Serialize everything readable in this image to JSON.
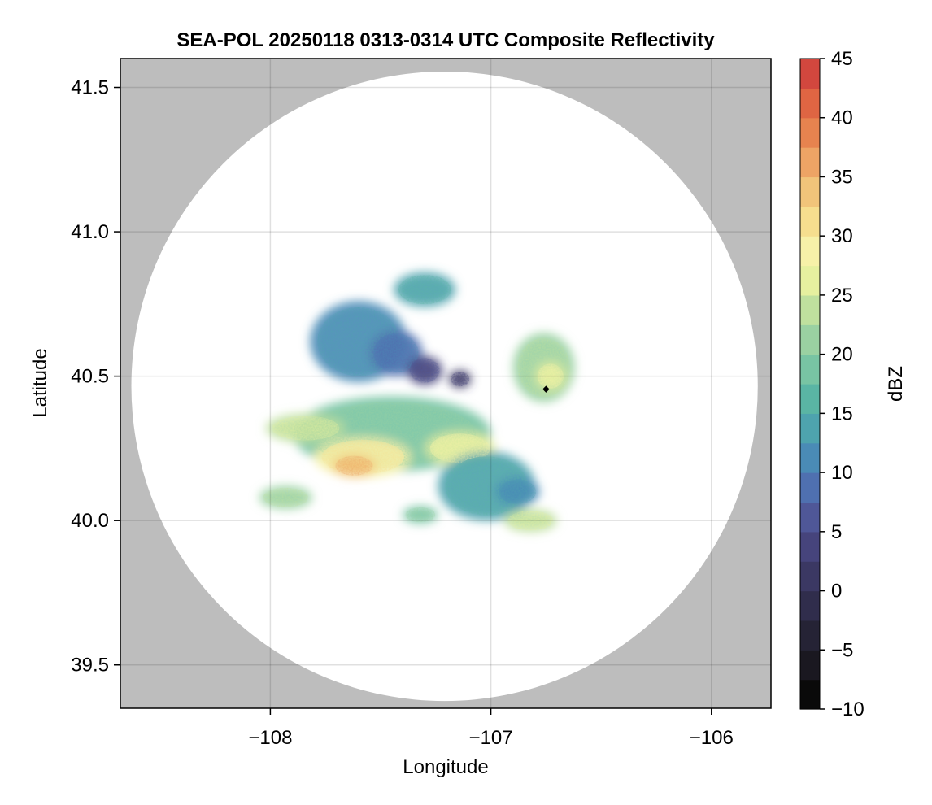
{
  "chart_data": {
    "type": "heatmap",
    "title": "SEA-POL 20250118 0313-0314 UTC Composite Reflectivity",
    "xlabel": "Longitude",
    "ylabel": "Latitude",
    "xlim": [
      -108.68,
      -105.73
    ],
    "ylim": [
      39.35,
      41.6
    ],
    "x_ticks": [
      -108,
      -107,
      -106
    ],
    "x_tick_labels": [
      "−108",
      "−107",
      "−106"
    ],
    "y_ticks": [
      39.5,
      40.0,
      40.5,
      41.0,
      41.5
    ],
    "y_tick_labels": [
      "39.5",
      "40.0",
      "40.5",
      "41.0",
      "41.5"
    ],
    "grid": true,
    "background_color": "#bdbdbd",
    "radar_coverage": {
      "center_lon": -107.21,
      "center_lat": 40.465,
      "radius_deg_lat": 1.09
    },
    "radar_site": {
      "lon": -106.75,
      "lat": 40.455
    },
    "colorbar": {
      "label": "dBZ",
      "min": -10,
      "max": 45,
      "step": 2.5,
      "ticks": [
        -10,
        -5,
        0,
        5,
        10,
        15,
        20,
        25,
        30,
        35,
        40,
        45
      ],
      "tick_labels": [
        "−10",
        "−5",
        "0",
        "5",
        "10",
        "15",
        "20",
        "25",
        "30",
        "35",
        "40",
        "45"
      ],
      "colors": [
        "#0a0a0a",
        "#1a1820",
        "#252335",
        "#302d4c",
        "#3b3863",
        "#46447c",
        "#4f5798",
        "#4f70b0",
        "#4a8bb6",
        "#4ea3ae",
        "#5ab5a4",
        "#78c4a3",
        "#9ad1a2",
        "#bfe09e",
        "#e6f09f",
        "#f7f1a8",
        "#f6de8e",
        "#f1c47a",
        "#eda465",
        "#e7834f",
        "#df6543",
        "#d2473e",
        "#b52e45",
        "#a81c50",
        "#bf2e7c",
        "#d9589d",
        "#e88ec0",
        "#d6a2cf",
        "#b788c2",
        "#9a62aa",
        "#7c3f8f",
        "#5f1f74",
        "#42085a"
      ]
    },
    "echo_regions": [
      {
        "lon": -107.45,
        "lat": 40.3,
        "dlon": 0.45,
        "dlat": 0.13,
        "dbz": 18
      },
      {
        "lon": -107.58,
        "lat": 40.22,
        "dlon": 0.22,
        "dlat": 0.07,
        "dbz": 28
      },
      {
        "lon": -107.62,
        "lat": 40.19,
        "dlon": 0.1,
        "dlat": 0.04,
        "dbz": 33
      },
      {
        "lon": -107.14,
        "lat": 40.25,
        "dlon": 0.16,
        "dlat": 0.06,
        "dbz": 26
      },
      {
        "lon": -107.84,
        "lat": 40.32,
        "dlon": 0.18,
        "dlat": 0.05,
        "dbz": 23
      },
      {
        "lon": -107.6,
        "lat": 40.62,
        "dlon": 0.22,
        "dlat": 0.14,
        "dbz": 12
      },
      {
        "lon": -107.43,
        "lat": 40.58,
        "dlon": 0.12,
        "dlat": 0.08,
        "dbz": 8
      },
      {
        "lon": -107.3,
        "lat": 40.52,
        "dlon": 0.08,
        "dlat": 0.05,
        "dbz": 3
      },
      {
        "lon": -107.14,
        "lat": 40.49,
        "dlon": 0.05,
        "dlat": 0.03,
        "dbz": 1
      },
      {
        "lon": -107.3,
        "lat": 40.8,
        "dlon": 0.14,
        "dlat": 0.06,
        "dbz": 13
      },
      {
        "lon": -107.02,
        "lat": 40.12,
        "dlon": 0.22,
        "dlat": 0.12,
        "dbz": 14
      },
      {
        "lon": -106.88,
        "lat": 40.1,
        "dlon": 0.1,
        "dlat": 0.05,
        "dbz": 10
      },
      {
        "lon": -106.82,
        "lat": 40.0,
        "dlon": 0.12,
        "dlat": 0.04,
        "dbz": 24
      },
      {
        "lon": -106.76,
        "lat": 40.53,
        "dlon": 0.14,
        "dlat": 0.12,
        "dbz": 21
      },
      {
        "lon": -106.73,
        "lat": 40.5,
        "dlon": 0.07,
        "dlat": 0.05,
        "dbz": 27
      },
      {
        "lon": -107.93,
        "lat": 40.08,
        "dlon": 0.12,
        "dlat": 0.04,
        "dbz": 20
      },
      {
        "lon": -107.32,
        "lat": 40.02,
        "dlon": 0.08,
        "dlat": 0.03,
        "dbz": 19
      }
    ]
  }
}
